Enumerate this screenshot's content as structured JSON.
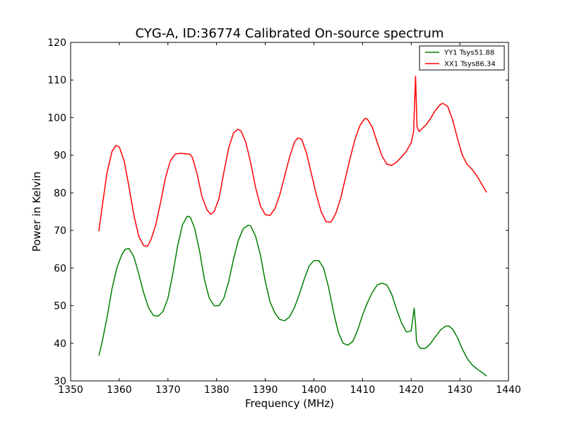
{
  "chart_data": {
    "type": "line",
    "title": "CYG-A, ID:36774 Calibrated On-source spectrum",
    "xlabel": "Frequency (MHz)",
    "ylabel": "Power in Kelvin",
    "xlim": [
      1350,
      1440
    ],
    "ylim": [
      30,
      120
    ],
    "xticks": [
      1350,
      1360,
      1370,
      1380,
      1390,
      1400,
      1410,
      1420,
      1430,
      1440
    ],
    "yticks": [
      30,
      40,
      50,
      60,
      70,
      80,
      90,
      100,
      110,
      120
    ],
    "grid": false,
    "legend_position": "top-right",
    "series": [
      {
        "name": "YY1 Tsys51.88",
        "color": "#008000",
        "x": [
          1355.8,
          1356.5,
          1357.5,
          1358.5,
          1359.5,
          1360.5,
          1361.2,
          1362.0,
          1363.0,
          1364.0,
          1365.0,
          1366.0,
          1367.0,
          1368.0,
          1369.0,
          1370.0,
          1371.0,
          1372.0,
          1373.0,
          1374.0,
          1374.6,
          1375.5,
          1376.5,
          1377.5,
          1378.5,
          1379.5,
          1380.5,
          1381.5,
          1382.5,
          1383.5,
          1384.5,
          1385.5,
          1386.5,
          1387.0,
          1388.0,
          1389.0,
          1390.0,
          1391.0,
          1392.0,
          1393.0,
          1394.0,
          1395.0,
          1396.0,
          1397.0,
          1398.0,
          1399.0,
          1400.0,
          1401.0,
          1402.0,
          1403.0,
          1404.0,
          1405.0,
          1406.0,
          1407.0,
          1408.0,
          1409.0,
          1410.0,
          1411.0,
          1412.0,
          1413.0,
          1414.0,
          1415.0,
          1416.0,
          1417.0,
          1418.0,
          1419.0,
          1420.0,
          1420.6,
          1420.9,
          1421.1,
          1421.5,
          1422.0,
          1423.0,
          1424.0,
          1425.0,
          1426.0,
          1427.0,
          1427.7,
          1428.5,
          1429.5,
          1430.5,
          1431.5,
          1432.5,
          1433.5,
          1434.5,
          1435.5
        ],
        "values": [
          36.7,
          40.5,
          47.0,
          54.5,
          60.0,
          63.5,
          65.0,
          65.2,
          63.0,
          58.5,
          53.5,
          49.5,
          47.4,
          47.2,
          48.5,
          52.0,
          58.5,
          66.0,
          71.5,
          73.8,
          73.5,
          70.5,
          64.5,
          57.0,
          52.0,
          50.0,
          50.0,
          52.0,
          56.5,
          62.5,
          67.5,
          70.5,
          71.4,
          71.2,
          68.5,
          63.5,
          56.5,
          51.0,
          48.0,
          46.3,
          46.0,
          47.0,
          49.5,
          53.0,
          57.0,
          60.5,
          62.0,
          62.0,
          60.0,
          55.0,
          48.5,
          43.0,
          40.0,
          39.5,
          40.5,
          43.5,
          47.5,
          50.8,
          53.5,
          55.5,
          56.0,
          55.5,
          53.0,
          49.0,
          45.5,
          43.0,
          43.3,
          49.3,
          45.0,
          40.5,
          39.2,
          38.6,
          38.7,
          40.0,
          41.8,
          43.5,
          44.5,
          44.6,
          43.8,
          41.5,
          38.5,
          36.0,
          34.3,
          33.2,
          32.3,
          31.3
        ]
      },
      {
        "name": "XX1 Tsys86.34",
        "color": "#ff0000",
        "x": [
          1355.8,
          1356.5,
          1357.5,
          1358.5,
          1359.3,
          1360.0,
          1361.0,
          1362.0,
          1363.0,
          1364.0,
          1365.0,
          1365.8,
          1366.5,
          1367.5,
          1368.5,
          1369.5,
          1370.5,
          1371.5,
          1372.5,
          1373.5,
          1374.5,
          1375.0,
          1376.0,
          1377.0,
          1378.0,
          1378.8,
          1379.5,
          1380.5,
          1381.5,
          1382.5,
          1383.5,
          1384.4,
          1385.0,
          1386.0,
          1387.0,
          1388.0,
          1389.0,
          1390.0,
          1391.0,
          1392.0,
          1393.0,
          1394.0,
          1395.0,
          1396.0,
          1396.7,
          1397.5,
          1398.5,
          1399.5,
          1400.5,
          1401.5,
          1402.5,
          1403.5,
          1404.5,
          1405.5,
          1406.5,
          1407.5,
          1408.5,
          1409.5,
          1410.5,
          1411.0,
          1412.0,
          1413.0,
          1414.0,
          1415.0,
          1416.0,
          1417.0,
          1418.0,
          1419.0,
          1420.0,
          1420.5,
          1420.9,
          1421.2,
          1421.6,
          1422.0,
          1423.0,
          1424.0,
          1425.0,
          1426.0,
          1426.5,
          1427.5,
          1428.5,
          1429.5,
          1430.5,
          1431.5,
          1432.5,
          1433.5,
          1434.5,
          1435.5
        ],
        "values": [
          69.8,
          76.5,
          85.5,
          91.0,
          92.6,
          92.2,
          88.5,
          81.5,
          74.0,
          68.5,
          66.0,
          65.8,
          67.5,
          71.5,
          77.5,
          84.0,
          88.5,
          90.3,
          90.5,
          90.4,
          90.3,
          89.5,
          85.0,
          79.0,
          75.5,
          74.3,
          75.0,
          78.5,
          85.5,
          92.0,
          96.0,
          96.9,
          96.5,
          93.5,
          88.0,
          81.5,
          76.5,
          74.2,
          74.0,
          75.8,
          79.5,
          84.5,
          89.5,
          93.5,
          94.6,
          94.2,
          90.5,
          85.0,
          79.5,
          75.0,
          72.3,
          72.2,
          74.5,
          78.5,
          84.0,
          89.5,
          94.5,
          98.0,
          99.8,
          99.6,
          97.5,
          93.5,
          89.8,
          87.6,
          87.3,
          88.2,
          89.5,
          91.0,
          93.3,
          96.5,
          111.0,
          97.5,
          96.3,
          96.8,
          98.0,
          99.8,
          102.0,
          103.5,
          103.8,
          103.0,
          99.5,
          94.5,
          90.0,
          87.6,
          86.3,
          84.5,
          82.3,
          80.1
        ]
      }
    ]
  }
}
